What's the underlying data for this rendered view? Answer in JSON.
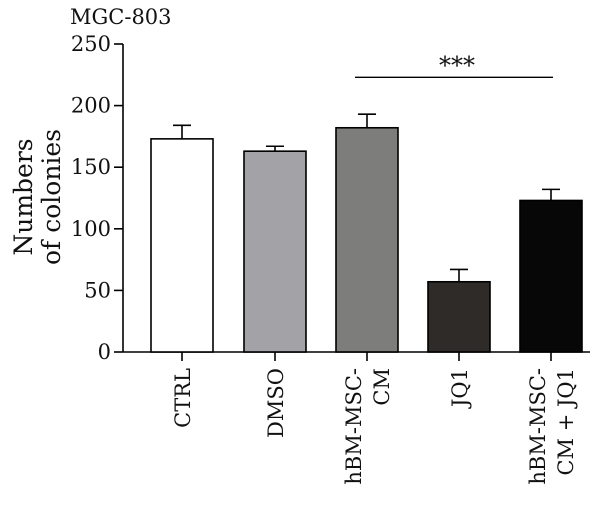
{
  "chart_data": {
    "type": "bar",
    "title": "MGC-803",
    "ylabel": [
      "Numbers",
      "of colonies"
    ],
    "xlabel": "",
    "ylim": [
      0,
      250
    ],
    "yticks": [
      0,
      50,
      100,
      150,
      200,
      250
    ],
    "grid": false,
    "legend": "none",
    "categories": [
      [
        "CTRL"
      ],
      [
        "DMSO"
      ],
      [
        "hBM-MSC-",
        "CM"
      ],
      [
        "JQ1"
      ],
      [
        "hBM-MSC-",
        "CM + JQ1"
      ]
    ],
    "values": [
      173,
      163,
      182,
      57,
      123
    ],
    "errors": [
      11,
      4,
      11,
      10,
      9
    ],
    "colors": [
      "#ffffff",
      "#a3a2a6",
      "#7d7e7c",
      "#2f2b28",
      "#070707"
    ],
    "annotations": [
      {
        "text": "***",
        "from_index": 2,
        "to_index": 4,
        "y": 223
      }
    ]
  }
}
